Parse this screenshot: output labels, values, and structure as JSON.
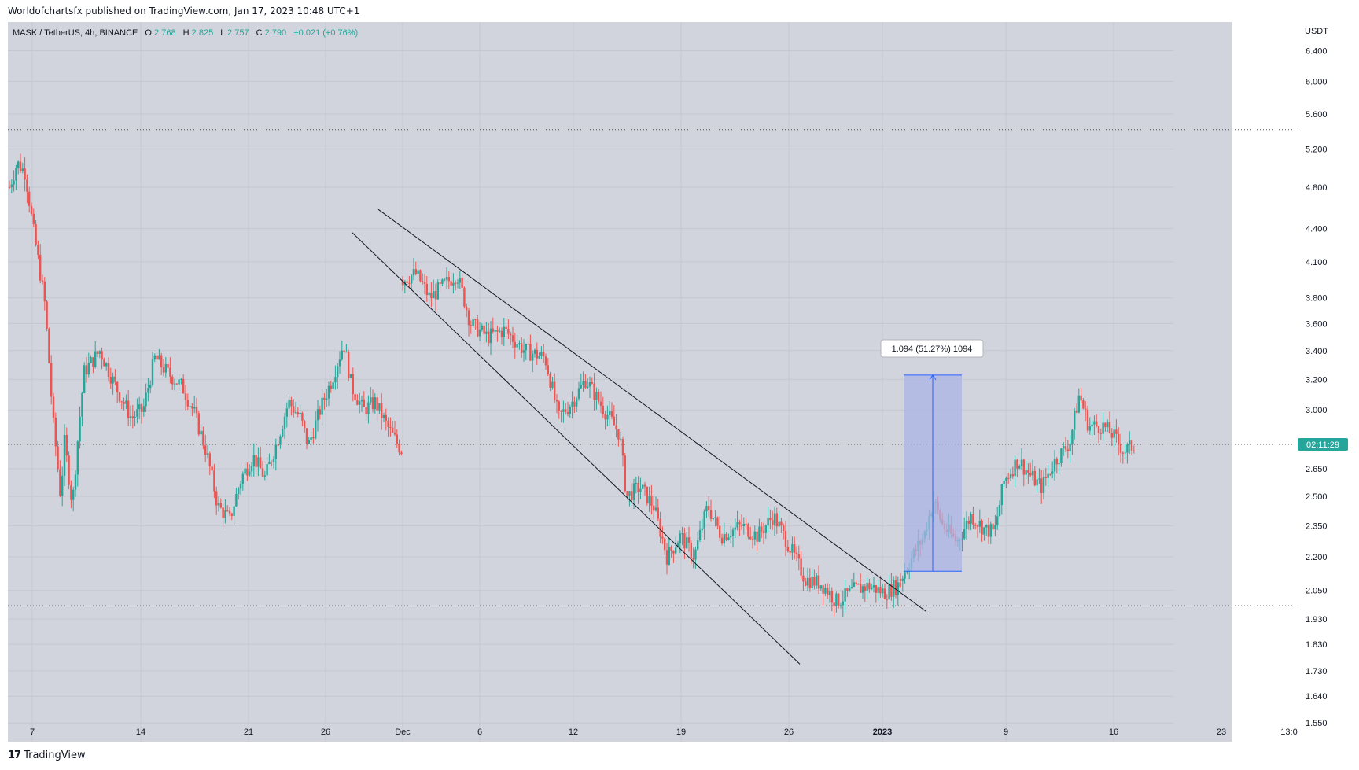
{
  "header": {
    "published_line": "Worldofchartsfx published on TradingView.com, Jan 17, 2023 10:48 UTC+1"
  },
  "legend": {
    "symbol": "MASK / TetherUS, 4h, BINANCE",
    "o_label": "O",
    "o_value": "2.768",
    "h_label": "H",
    "h_value": "2.825",
    "l_label": "L",
    "l_value": "2.757",
    "c_label": "C",
    "c_value": "2.790",
    "change": "+0.021 (+0.76%)"
  },
  "measure_label": "1.094 (51.27%) 1094",
  "footer": {
    "brand": "TradingView",
    "logo_glyph": "17"
  },
  "colors": {
    "up": "#26a69a",
    "down": "#ef5350",
    "background": "#d1d4dc",
    "measure_fill": "#aab4e6",
    "measure_line": "#2962ff",
    "trendline": "#131722",
    "price_tag": "#26a69a"
  },
  "chart_data": {
    "type": "candlestick",
    "title": "MASK / TetherUS, 4h, BINANCE",
    "yscale": "log",
    "ylim": [
      1.49,
      6.8
    ],
    "currency": "USDT",
    "current_price": 2.79,
    "countdown": "02:11:29",
    "y_ticks": [
      "6.400",
      "6.000",
      "5.600",
      "5.200",
      "4.800",
      "4.400",
      "4.100",
      "3.800",
      "3.600",
      "3.400",
      "3.200",
      "3.000",
      "2.650",
      "2.500",
      "2.350",
      "2.200",
      "2.050",
      "1.930",
      "1.830",
      "1.730",
      "1.640",
      "1.550"
    ],
    "x_ticks": [
      "7",
      "14",
      "21",
      "26",
      "Dec",
      "6",
      "12",
      "19",
      "26",
      "2023",
      "9",
      "16",
      "23",
      "13:0"
    ],
    "horizontal_levels": [
      5.42,
      1.985
    ],
    "price_path": [
      {
        "t": 0.0,
        "p": 4.8
      },
      {
        "t": 0.02,
        "p": 5.05
      },
      {
        "t": 0.04,
        "p": 4.95
      },
      {
        "t": 0.06,
        "p": 4.4
      },
      {
        "t": 0.09,
        "p": 3.75
      },
      {
        "t": 0.11,
        "p": 2.95
      },
      {
        "t": 0.13,
        "p": 2.5
      },
      {
        "t": 0.14,
        "p": 2.8
      },
      {
        "t": 0.16,
        "p": 2.45
      },
      {
        "t": 0.19,
        "p": 3.25
      },
      {
        "t": 0.23,
        "p": 3.4
      },
      {
        "t": 0.27,
        "p": 3.15
      },
      {
        "t": 0.31,
        "p": 2.95
      },
      {
        "t": 0.34,
        "p": 3.0
      },
      {
        "t": 0.37,
        "p": 3.35
      },
      {
        "t": 0.4,
        "p": 3.25
      },
      {
        "t": 0.44,
        "p": 3.15
      },
      {
        "t": 0.47,
        "p": 2.98
      },
      {
        "t": 0.5,
        "p": 2.75
      },
      {
        "t": 0.53,
        "p": 2.45
      },
      {
        "t": 0.56,
        "p": 2.38
      },
      {
        "t": 0.59,
        "p": 2.6
      },
      {
        "t": 0.62,
        "p": 2.72
      },
      {
        "t": 0.65,
        "p": 2.6
      },
      {
        "t": 0.68,
        "p": 2.8
      },
      {
        "t": 0.71,
        "p": 3.05
      },
      {
        "t": 0.74,
        "p": 2.95
      },
      {
        "t": 0.76,
        "p": 2.78
      },
      {
        "t": 0.79,
        "p": 3.0
      },
      {
        "t": 0.82,
        "p": 3.2
      },
      {
        "t": 0.85,
        "p": 3.45
      },
      {
        "t": 0.87,
        "p": 3.15
      },
      {
        "t": 0.9,
        "p": 3.0
      },
      {
        "t": 0.93,
        "p": 3.05
      },
      {
        "t": 0.96,
        "p": 2.9
      },
      {
        "t": 0.99,
        "p": 2.78
      },
      {
        "t": 1.0,
        "p": 2.75
      }
    ],
    "price_path_2": [
      {
        "t": 0.0,
        "p": 3.95
      },
      {
        "t": 0.04,
        "p": 4.0
      },
      {
        "t": 0.08,
        "p": 3.8
      },
      {
        "t": 0.12,
        "p": 3.9
      },
      {
        "t": 0.16,
        "p": 4.0
      },
      {
        "t": 0.2,
        "p": 3.6
      },
      {
        "t": 0.25,
        "p": 3.5
      },
      {
        "t": 0.3,
        "p": 3.55
      },
      {
        "t": 0.36,
        "p": 3.4
      },
      {
        "t": 0.42,
        "p": 3.35
      },
      {
        "t": 0.46,
        "p": 2.95
      },
      {
        "t": 0.5,
        "p": 3.05
      },
      {
        "t": 0.54,
        "p": 3.2
      },
      {
        "t": 0.58,
        "p": 3.05
      },
      {
        "t": 0.61,
        "p": 2.95
      },
      {
        "t": 0.64,
        "p": 2.85
      },
      {
        "t": 0.66,
        "p": 2.5
      },
      {
        "t": 0.7,
        "p": 2.55
      },
      {
        "t": 0.74,
        "p": 2.45
      },
      {
        "t": 0.78,
        "p": 2.2
      },
      {
        "t": 0.82,
        "p": 2.3
      },
      {
        "t": 0.86,
        "p": 2.2
      },
      {
        "t": 0.9,
        "p": 2.45
      },
      {
        "t": 0.94,
        "p": 2.3
      },
      {
        "t": 1.0,
        "p": 2.35
      }
    ],
    "price_path_3": [
      {
        "t": 0.0,
        "p": 2.35
      },
      {
        "t": 0.1,
        "p": 2.3
      },
      {
        "t": 0.2,
        "p": 2.4
      },
      {
        "t": 0.3,
        "p": 2.25
      },
      {
        "t": 0.4,
        "p": 2.1
      },
      {
        "t": 0.5,
        "p": 2.08
      },
      {
        "t": 0.6,
        "p": 2.0
      },
      {
        "t": 0.7,
        "p": 2.05
      },
      {
        "t": 0.8,
        "p": 2.07
      },
      {
        "t": 0.9,
        "p": 2.04
      },
      {
        "t": 1.0,
        "p": 2.08
      }
    ],
    "price_path_4": [
      {
        "t": 0.0,
        "p": 2.1
      },
      {
        "t": 0.06,
        "p": 2.22
      },
      {
        "t": 0.1,
        "p": 2.3
      },
      {
        "t": 0.14,
        "p": 2.48
      },
      {
        "t": 0.18,
        "p": 2.35
      },
      {
        "t": 0.24,
        "p": 2.27
      },
      {
        "t": 0.3,
        "p": 2.4
      },
      {
        "t": 0.36,
        "p": 2.33
      },
      {
        "t": 0.4,
        "p": 2.32
      },
      {
        "t": 0.44,
        "p": 2.58
      },
      {
        "t": 0.5,
        "p": 2.7
      },
      {
        "t": 0.56,
        "p": 2.6
      },
      {
        "t": 0.6,
        "p": 2.55
      },
      {
        "t": 0.66,
        "p": 2.7
      },
      {
        "t": 0.72,
        "p": 2.8
      },
      {
        "t": 0.76,
        "p": 3.1
      },
      {
        "t": 0.8,
        "p": 2.9
      },
      {
        "t": 0.86,
        "p": 2.9
      },
      {
        "t": 0.9,
        "p": 2.85
      },
      {
        "t": 0.95,
        "p": 2.75
      },
      {
        "t": 1.0,
        "p": 2.79
      }
    ],
    "trendlines": [
      {
        "from_date": "Nov 30",
        "from_price": 4.6,
        "to_date": "Jan 3",
        "to_price": 2.0
      },
      {
        "from_date": "Nov 27",
        "from_price": 4.35,
        "to_date": "Dec 26",
        "to_price": 1.76
      }
    ],
    "measure": {
      "from_price": 2.135,
      "to_price": 3.229,
      "change": "1.094",
      "percent": "51.27%",
      "bars": "1094"
    }
  }
}
